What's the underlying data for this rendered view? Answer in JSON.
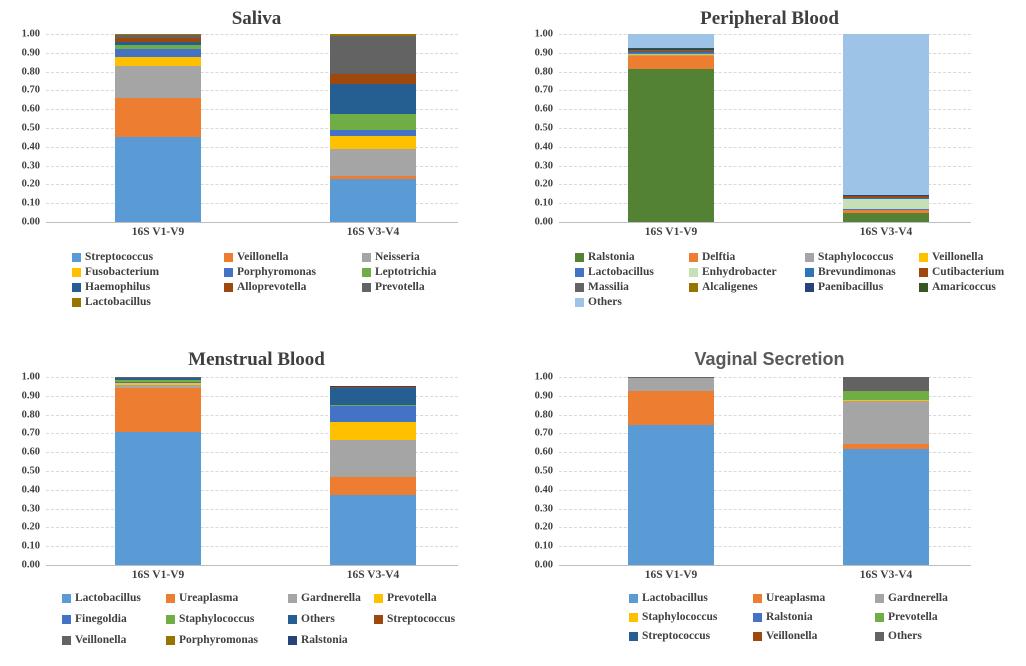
{
  "figure_title": "",
  "x_categories": [
    "16S V1-V9",
    "16S V3-V4"
  ],
  "ytick_labels": [
    "1.00",
    "0.90",
    "0.80",
    "0.70",
    "0.60",
    "0.50",
    "0.40",
    "0.30",
    "0.20",
    "0.10",
    "0.00"
  ],
  "chart_data": [
    {
      "type": "bar",
      "stacked": true,
      "title": "Saliva",
      "categories": [
        "16S V1-V9",
        "16S V3-V4"
      ],
      "ylim": [
        0,
        1
      ],
      "ytick_step": 0.1,
      "grid": "dashed-horizontal",
      "legend_position": "bottom",
      "legend_columns": 3,
      "series": [
        {
          "name": "Streptococcus",
          "color": "#5B9BD5",
          "values": [
            0.45,
            0.23
          ]
        },
        {
          "name": "Veillonella",
          "color": "#ED7D31",
          "values": [
            0.21,
            0.015
          ]
        },
        {
          "name": "Neisseria",
          "color": "#A5A5A5",
          "values": [
            0.17,
            0.145
          ]
        },
        {
          "name": "Fusobacterium",
          "color": "#FFC000",
          "values": [
            0.05,
            0.07
          ]
        },
        {
          "name": "Porphyromonas",
          "color": "#4472C4",
          "values": [
            0.04,
            0.03
          ]
        },
        {
          "name": "Leptotrichia",
          "color": "#70AD47",
          "values": [
            0.02,
            0.085
          ]
        },
        {
          "name": "Haemophilus",
          "color": "#255E91",
          "values": [
            0.02,
            0.16
          ]
        },
        {
          "name": "Alloprevotella",
          "color": "#9E480E",
          "values": [
            0.02,
            0.055
          ]
        },
        {
          "name": "Prevotella",
          "color": "#636363",
          "values": [
            0.015,
            0.2
          ]
        },
        {
          "name": "Lactobacillus",
          "color": "#997300",
          "values": [
            0.005,
            0.01
          ]
        }
      ]
    },
    {
      "type": "bar",
      "stacked": true,
      "title": "Peripheral Blood",
      "categories": [
        "16S V1-V9",
        "16S V3-V4"
      ],
      "ylim": [
        0,
        1
      ],
      "ytick_step": 0.1,
      "grid": "dashed-horizontal",
      "legend_position": "bottom",
      "legend_columns": 4,
      "series": [
        {
          "name": "Ralstonia",
          "color": "#548235",
          "values": [
            0.815,
            0.05
          ]
        },
        {
          "name": "Delftia",
          "color": "#ED7D31",
          "values": [
            0.07,
            0.012
          ]
        },
        {
          "name": "Staphylococcus",
          "color": "#A5A5A5",
          "values": [
            0.006,
            0.002
          ]
        },
        {
          "name": "Veillonella",
          "color": "#FFC000",
          "values": [
            0.003,
            0.002
          ]
        },
        {
          "name": "Lactobacillus",
          "color": "#4472C4",
          "values": [
            0.004,
            0.003
          ]
        },
        {
          "name": "Enhydrobacter",
          "color": "#C5E0B4",
          "values": [
            0.002,
            0.052
          ]
        },
        {
          "name": "Brevundimonas",
          "color": "#2E75B6",
          "values": [
            0.005,
            0.007
          ]
        },
        {
          "name": "Cutibacterium",
          "color": "#9E480E",
          "values": [
            0.006,
            0.009
          ]
        },
        {
          "name": "Massilia",
          "color": "#636363",
          "values": [
            0.004,
            0.002
          ]
        },
        {
          "name": "Alcaligenes",
          "color": "#997300",
          "values": [
            0.002,
            0.001
          ]
        },
        {
          "name": "Paenibacillus",
          "color": "#264478",
          "values": [
            0.006,
            0.002
          ]
        },
        {
          "name": "Amaricoccus",
          "color": "#375623",
          "values": [
            0.002,
            0.001
          ]
        },
        {
          "name": "Others",
          "color": "#9DC3E6",
          "values": [
            0.075,
            0.857
          ]
        }
      ]
    },
    {
      "type": "bar",
      "stacked": true,
      "title": "Menstrual Blood",
      "categories": [
        "16S V1-V9",
        "16S V3-V4"
      ],
      "ylim": [
        0,
        1
      ],
      "ytick_step": 0.1,
      "grid": "dashed-horizontal",
      "legend_position": "bottom",
      "legend_columns": 4,
      "series": [
        {
          "name": "Lactobacillus",
          "color": "#5B9BD5",
          "values": [
            0.705,
            0.37
          ]
        },
        {
          "name": "Ureaplasma",
          "color": "#ED7D31",
          "values": [
            0.235,
            0.1
          ]
        },
        {
          "name": "Gardnerella",
          "color": "#A5A5A5",
          "values": [
            0.018,
            0.195
          ]
        },
        {
          "name": "Prevotella",
          "color": "#FFC000",
          "values": [
            0.01,
            0.095
          ]
        },
        {
          "name": "Finegoldia",
          "color": "#4472C4",
          "values": [
            0.008,
            0.085
          ]
        },
        {
          "name": "Staphylococcus",
          "color": "#70AD47",
          "values": [
            0.008,
            0.005
          ]
        },
        {
          "name": "Others",
          "color": "#255E91",
          "values": [
            0.01,
            0.093
          ]
        },
        {
          "name": "Streptococcus",
          "color": "#9E480E",
          "values": [
            0.002,
            0.005
          ]
        },
        {
          "name": "Veillonella",
          "color": "#636363",
          "values": [
            0.002,
            0.001
          ]
        },
        {
          "name": "Porphyromonas",
          "color": "#997300",
          "values": [
            0.001,
            0.0005
          ]
        },
        {
          "name": "Ralstonia",
          "color": "#264478",
          "values": [
            0.001,
            0.0005
          ]
        }
      ]
    },
    {
      "type": "bar",
      "stacked": true,
      "title": "Vaginal Secretion",
      "categories": [
        "16S V1-V9",
        "16S V3-V4"
      ],
      "ylim": [
        0,
        1
      ],
      "ytick_step": 0.1,
      "grid": "dashed-horizontal",
      "legend_position": "bottom",
      "legend_columns": 3,
      "series": [
        {
          "name": "Lactobacillus",
          "color": "#5B9BD5",
          "values": [
            0.745,
            0.615
          ]
        },
        {
          "name": "Ureaplasma",
          "color": "#ED7D31",
          "values": [
            0.18,
            0.03
          ]
        },
        {
          "name": "Gardnerella",
          "color": "#A5A5A5",
          "values": [
            0.068,
            0.225
          ]
        },
        {
          "name": "Staphylococcus",
          "color": "#FFC000",
          "values": [
            0,
            0.007
          ]
        },
        {
          "name": "Ralstonia",
          "color": "#4472C4",
          "values": [
            0,
            0
          ]
        },
        {
          "name": "Prevotella",
          "color": "#70AD47",
          "values": [
            0,
            0.048
          ]
        },
        {
          "name": "Streptococcus",
          "color": "#255E91",
          "values": [
            0,
            0
          ]
        },
        {
          "name": "Veillonella",
          "color": "#9E480E",
          "values": [
            0,
            0
          ]
        },
        {
          "name": "Others",
          "color": "#636363",
          "values": [
            0.007,
            0.075
          ]
        }
      ]
    }
  ]
}
